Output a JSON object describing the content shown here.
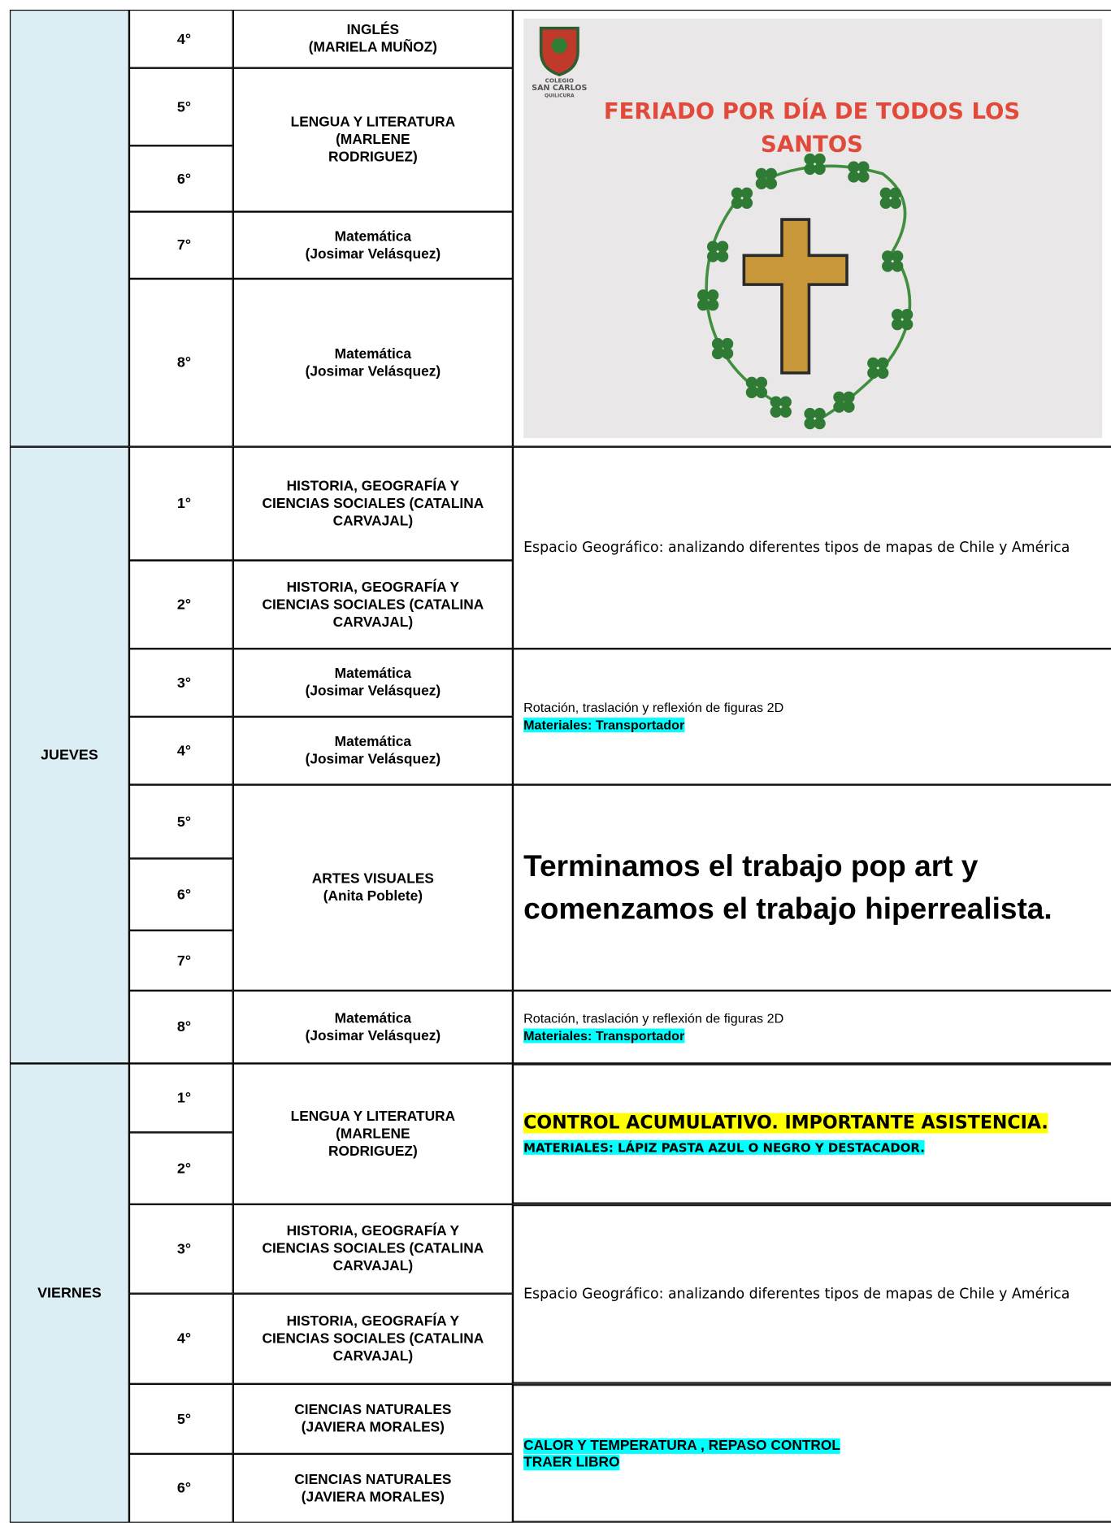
{
  "blocks": [
    {
      "grades": [
        "4°",
        "5°",
        "6°",
        "7°",
        "8°"
      ],
      "subjects": [
        [
          "INGLÉS",
          "(MARIELA MUÑOZ)"
        ],
        [
          "LENGUA Y LITERATURA",
          "(MARLENE",
          "RODRIGUEZ)"
        ],
        [
          "Matemática",
          "(Josimar Velásquez)"
        ],
        [
          "Matemática",
          "(Josimar Velásquez)"
        ]
      ],
      "notice": {
        "logo": [
          "COLEGIO",
          "SAN CARLOS",
          "QUILICURA"
        ],
        "title": [
          "FERIADO POR DÍA DE TODOS LOS",
          "SANTOS"
        ]
      }
    },
    {
      "day": "JUEVES",
      "grades": [
        "1°",
        "2°",
        "3°",
        "4°",
        "5°",
        "6°",
        "7°",
        "8°"
      ],
      "subjects": [
        [
          "HISTORIA, GEOGRAFÍA Y",
          "CIENCIAS SOCIALES (CATALINA",
          "CARVAJAL)"
        ],
        [
          "HISTORIA, GEOGRAFÍA Y",
          "CIENCIAS SOCIALES (CATALINA",
          "CARVAJAL)"
        ],
        [
          "Matemática",
          "(Josimar Velásquez)"
        ],
        [
          "Matemática",
          "(Josimar Velásquez)"
        ],
        [
          "ARTES  VISUALES",
          "(Anita Poblete)"
        ],
        [
          "Matemática",
          "(Josimar Velásquez)"
        ]
      ],
      "contents": [
        [
          "Espacio Geográfico: analizando diferentes tipos de mapas de Chile y América"
        ],
        [
          "Rotación, traslación y reflexión de figuras 2D",
          "Materiales: Transportador"
        ],
        [
          "Terminamos el trabajo pop art  y comenzamos el trabajo hiperrealista."
        ],
        [
          "Rotación, traslación y reflexión de figuras 2D",
          "Materiales: Transportador"
        ]
      ]
    },
    {
      "day": "VIERNES",
      "grades": [
        "1°",
        "2°",
        "3°",
        "4°",
        "5°",
        "6°"
      ],
      "subjects": [
        [
          "LENGUA Y LITERATURA",
          "(MARLENE",
          "RODRIGUEZ)"
        ],
        [
          "HISTORIA, GEOGRAFÍA Y",
          "CIENCIAS SOCIALES (CATALINA",
          "CARVAJAL)"
        ],
        [
          "HISTORIA, GEOGRAFÍA Y",
          "CIENCIAS SOCIALES (CATALINA",
          "CARVAJAL)"
        ],
        [
          "CIENCIAS NATURALES",
          "(JAVIERA MORALES)"
        ],
        [
          "CIENCIAS NATURALES",
          "(JAVIERA MORALES)"
        ]
      ],
      "contents": [
        [
          "CONTROL ACUMULATIVO. IMPORTANTE ASISTENCIA.",
          "MATERIALES: LÁPIZ PASTA AZUL O NEGRO Y DESTACADOR."
        ],
        [
          "Espacio Geográfico: analizando diferentes tipos de mapas de Chile y América"
        ],
        [
          "CALOR Y TEMPERATURA , REPASO CONTROL",
          "TRAER LIBRO"
        ]
      ]
    }
  ]
}
